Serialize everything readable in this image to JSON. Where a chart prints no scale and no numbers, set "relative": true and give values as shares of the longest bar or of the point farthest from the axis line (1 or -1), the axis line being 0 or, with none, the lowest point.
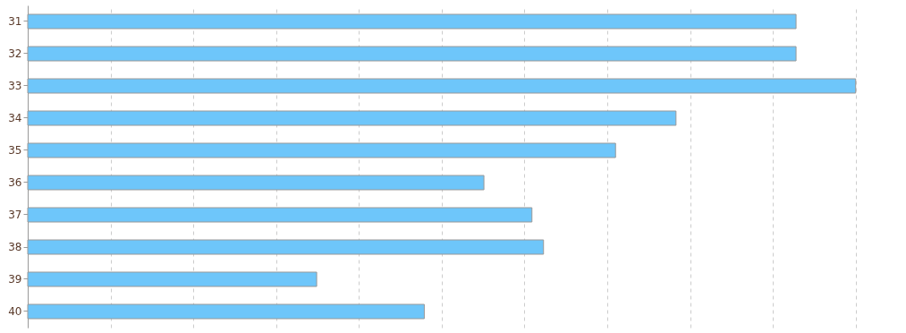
{
  "chart_data": {
    "type": "bar",
    "orientation": "horizontal",
    "relative": true,
    "categories": [
      "31",
      "32",
      "33",
      "34",
      "35",
      "36",
      "37",
      "38",
      "39",
      "40"
    ],
    "values": [
      0.928,
      0.928,
      1,
      0.783,
      0.71,
      0.551,
      0.609,
      0.623,
      0.349,
      0.479
    ],
    "color": "#6ec6fa",
    "grid": "x"
  }
}
